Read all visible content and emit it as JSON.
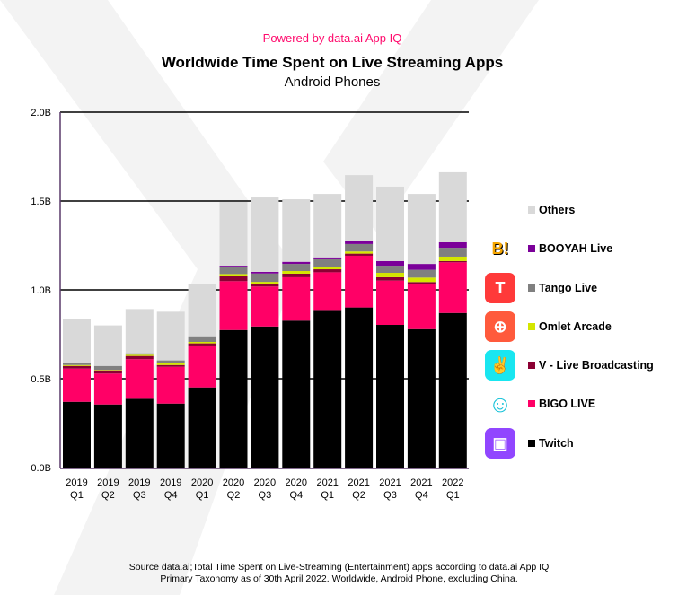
{
  "header": {
    "powered_by": "Powered by data.ai App IQ",
    "title": "Worldwide Time Spent on Live Streaming Apps",
    "subtitle": "Android Phones"
  },
  "footer": {
    "source_line1": "Source data.ai;Total Time Spent on Live-Streaming (Entertainment) apps according to data.ai App IQ",
    "source_line2": "Primary Taxonomy as of 30th April 2022. Worldwide, Android Phone, excluding China."
  },
  "chart_data": {
    "type": "bar",
    "stacked": true,
    "title": "Worldwide Time Spent on Live Streaming Apps",
    "subtitle": "Android Phones",
    "xlabel": "",
    "ylabel": "",
    "ylim": [
      0,
      2.0
    ],
    "yticks": [
      "0.0B",
      "0.5B",
      "1.0B",
      "1.5B",
      "2.0B"
    ],
    "ytick_values": [
      0,
      0.5,
      1.0,
      1.5,
      2.0
    ],
    "grid": true,
    "legend_position": "right",
    "categories": [
      [
        "2019",
        "Q1"
      ],
      [
        "2019",
        "Q2"
      ],
      [
        "2019",
        "Q3"
      ],
      [
        "2019",
        "Q4"
      ],
      [
        "2020",
        "Q1"
      ],
      [
        "2020",
        "Q2"
      ],
      [
        "2020",
        "Q3"
      ],
      [
        "2020",
        "Q4"
      ],
      [
        "2021",
        "Q1"
      ],
      [
        "2021",
        "Q2"
      ],
      [
        "2021",
        "Q3"
      ],
      [
        "2021",
        "Q4"
      ],
      [
        "2022",
        "Q1"
      ]
    ],
    "series": [
      {
        "name": "Twitch",
        "color": "#000000",
        "icon": "twitch-icon",
        "icon_color": "#9146ff",
        "values": [
          0.37,
          0.355,
          0.387,
          0.36,
          0.451,
          0.774,
          0.794,
          0.827,
          0.887,
          0.901,
          0.803,
          0.779,
          0.87
        ]
      },
      {
        "name": "BIGO LIVE",
        "color": "#ff0066",
        "icon": "bigo-live-icon",
        "icon_color": "#ffffff",
        "values": [
          0.187,
          0.174,
          0.223,
          0.207,
          0.236,
          0.275,
          0.225,
          0.244,
          0.212,
          0.291,
          0.249,
          0.256,
          0.285
        ]
      },
      {
        "name": "V - Live Broadcasting",
        "color": "#8b0033",
        "icon": "v-live-icon",
        "icon_color": "#19e6f0",
        "values": [
          0.015,
          0.018,
          0.018,
          0.01,
          0.012,
          0.027,
          0.013,
          0.02,
          0.017,
          0.012,
          0.019,
          0.009,
          0.007
        ]
      },
      {
        "name": "Omlet Arcade",
        "color": "#d4e600",
        "icon": "omlet-arcade-icon",
        "icon_color": "#ff5a3c",
        "values": [
          0.005,
          0.003,
          0.007,
          0.009,
          0.008,
          0.013,
          0.013,
          0.015,
          0.015,
          0.012,
          0.025,
          0.025,
          0.025
        ]
      },
      {
        "name": "Tango Live",
        "color": "#808080",
        "icon": "tango-live-icon",
        "icon_color": "#ff3a3a",
        "values": [
          0.012,
          0.022,
          0.008,
          0.017,
          0.032,
          0.039,
          0.047,
          0.04,
          0.041,
          0.042,
          0.04,
          0.044,
          0.05
        ]
      },
      {
        "name": "BOOYAH Live",
        "color": "#7b0099",
        "icon": "booyah-live-icon",
        "icon_color": "#f5c518",
        "values": [
          0,
          0,
          0,
          0,
          0,
          0.008,
          0.009,
          0.012,
          0.011,
          0.02,
          0.026,
          0.033,
          0.031
        ]
      },
      {
        "name": "Others",
        "color": "#d9d9d9",
        "icon": "",
        "icon_color": "",
        "values": [
          0.246,
          0.228,
          0.249,
          0.274,
          0.293,
          0.359,
          0.419,
          0.352,
          0.357,
          0.368,
          0.419,
          0.394,
          0.394
        ]
      }
    ]
  }
}
